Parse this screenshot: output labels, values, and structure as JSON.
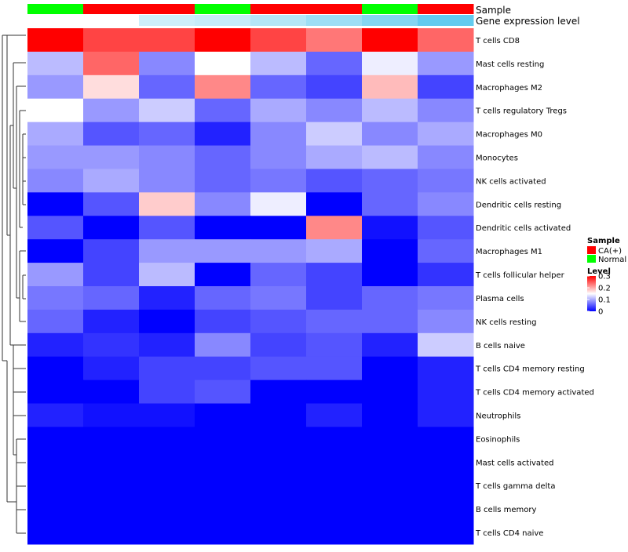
{
  "chart_data": {
    "type": "heatmap",
    "annotation_labels": [
      "Sample",
      "Gene expression level"
    ],
    "column_samples": [
      "Normal",
      "CA(+)",
      "CA(+)",
      "Normal",
      "CA(+)",
      "CA(+)",
      "Normal",
      "CA(+)"
    ],
    "column_expression": [
      0.0,
      0.0,
      0.3,
      0.35,
      0.45,
      0.6,
      0.75,
      0.95
    ],
    "rows": [
      "T cells CD8",
      "Mast cells resting",
      "Macrophages M2",
      "T cells regulatory  Tregs",
      "Macrophages M0",
      "Monocytes",
      "NK cells activated",
      "Dendritic cells resting",
      "Dendritic cells activated",
      "Macrophages M1",
      "T cells follicular helper",
      "Plasma cells",
      "NK cells resting",
      "B cells naive",
      "T cells CD4 memory resting",
      "T cells CD4 memory activated",
      "Neutrophils",
      "Eosinophils",
      "Mast cells activated",
      "T cells gamma delta",
      "B cells memory",
      "T cells CD4 naive"
    ],
    "values": [
      [
        0.3,
        0.26,
        0.26,
        0.3,
        0.26,
        0.23,
        0.3,
        0.24
      ],
      [
        0.11,
        0.24,
        0.08,
        0.15,
        0.11,
        0.06,
        0.14,
        0.09
      ],
      [
        0.09,
        0.17,
        0.06,
        0.22,
        0.06,
        0.04,
        0.19,
        0.04
      ],
      [
        0.15,
        0.09,
        0.12,
        0.06,
        0.1,
        0.08,
        0.11,
        0.08
      ],
      [
        0.1,
        0.05,
        0.06,
        0.02,
        0.08,
        0.12,
        0.08,
        0.1
      ],
      [
        0.09,
        0.09,
        0.08,
        0.06,
        0.08,
        0.1,
        0.11,
        0.08
      ],
      [
        0.08,
        0.1,
        0.08,
        0.06,
        0.07,
        0.05,
        0.06,
        0.07
      ],
      [
        0.0,
        0.05,
        0.18,
        0.08,
        0.14,
        0.0,
        0.06,
        0.08
      ],
      [
        0.05,
        0.0,
        0.05,
        0.0,
        0.0,
        0.22,
        0.01,
        0.05
      ],
      [
        0.0,
        0.04,
        0.09,
        0.09,
        0.09,
        0.1,
        0.0,
        0.06
      ],
      [
        0.09,
        0.04,
        0.11,
        0.0,
        0.06,
        0.04,
        0.0,
        0.03
      ],
      [
        0.07,
        0.06,
        0.02,
        0.06,
        0.07,
        0.04,
        0.06,
        0.07
      ],
      [
        0.06,
        0.02,
        0.0,
        0.04,
        0.05,
        0.06,
        0.06,
        0.08
      ],
      [
        0.02,
        0.03,
        0.02,
        0.08,
        0.04,
        0.05,
        0.02,
        0.12
      ],
      [
        0.0,
        0.02,
        0.04,
        0.04,
        0.05,
        0.05,
        0.0,
        0.02
      ],
      [
        0.0,
        0.0,
        0.04,
        0.05,
        0.0,
        0.0,
        0.0,
        0.02
      ],
      [
        0.02,
        0.01,
        0.01,
        0.0,
        0.0,
        0.02,
        0.0,
        0.02
      ],
      [
        0.0,
        0.0,
        0.0,
        0.0,
        0.0,
        0.0,
        0.0,
        0.0
      ],
      [
        0.0,
        0.0,
        0.0,
        0.0,
        0.0,
        0.0,
        0.0,
        0.0
      ],
      [
        0.0,
        0.0,
        0.0,
        0.0,
        0.0,
        0.0,
        0.0,
        0.0
      ],
      [
        0.0,
        0.0,
        0.0,
        0.0,
        0.0,
        0.0,
        0.0,
        0.0
      ],
      [
        0.0,
        0.0,
        0.0,
        0.0,
        0.0,
        0.0,
        0.0,
        0.0
      ]
    ],
    "color_scale": {
      "min": 0,
      "mid": 0.15,
      "max": 0.3,
      "low": "#0000ff",
      "midColor": "#ffffff",
      "high": "#ff0000"
    },
    "legend": {
      "sample_title": "Sample",
      "sample_entries": [
        {
          "label": "CA(+)",
          "color": "#ff0000"
        },
        {
          "label": "Normal",
          "color": "#00ff00"
        }
      ],
      "level_title": "Level",
      "level_ticks": [
        "0.3",
        "0.2",
        "0.1",
        "0"
      ],
      "level_tick_values": [
        0.3,
        0.2,
        0.1,
        0
      ]
    },
    "sample_colors": {
      "CA(+)": "#ff0000",
      "Normal": "#00ff00"
    },
    "expression_colors": {
      "low": "#ffffff",
      "high": "#5bc8ee"
    },
    "dendrogram": "rows clustered, hierarchical"
  }
}
